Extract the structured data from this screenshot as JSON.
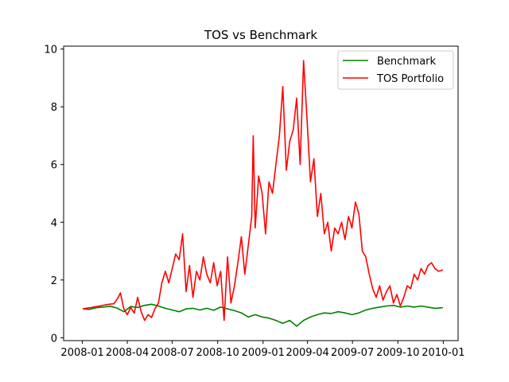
{
  "chart_data": {
    "type": "line",
    "title": "TOS vs Benchmark",
    "xlabel": "",
    "ylabel": "",
    "xlim": [
      "2007-11-24",
      "2010-01-31"
    ],
    "ylim": [
      -0.1,
      10.1
    ],
    "x_ticks": [
      {
        "date": "2008-01-01",
        "label": "2008-01"
      },
      {
        "date": "2008-04-01",
        "label": "2008-04"
      },
      {
        "date": "2008-07-01",
        "label": "2008-07"
      },
      {
        "date": "2008-10-01",
        "label": "2008-10"
      },
      {
        "date": "2009-01-01",
        "label": "2009-01"
      },
      {
        "date": "2009-04-01",
        "label": "2009-04"
      },
      {
        "date": "2009-07-01",
        "label": "2009-07"
      },
      {
        "date": "2009-10-01",
        "label": "2009-10"
      },
      {
        "date": "2010-01-01",
        "label": "2010-01"
      }
    ],
    "y_ticks": [
      0,
      2,
      4,
      6,
      8,
      10
    ],
    "grid": false,
    "legend": "top-right",
    "series": [
      {
        "name": "Benchmark",
        "color": "#008000",
        "points": [
          [
            "2008-01-02",
            1.0
          ],
          [
            "2008-01-15",
            0.98
          ],
          [
            "2008-01-29",
            1.04
          ],
          [
            "2008-02-12",
            1.06
          ],
          [
            "2008-02-26",
            1.09
          ],
          [
            "2008-03-11",
            1.03
          ],
          [
            "2008-03-25",
            0.9
          ],
          [
            "2008-04-08",
            1.08
          ],
          [
            "2008-04-22",
            1.05
          ],
          [
            "2008-05-06",
            1.12
          ],
          [
            "2008-05-20",
            1.16
          ],
          [
            "2008-06-03",
            1.1
          ],
          [
            "2008-06-17",
            1.02
          ],
          [
            "2008-07-01",
            0.96
          ],
          [
            "2008-07-15",
            0.9
          ],
          [
            "2008-07-29",
            1.0
          ],
          [
            "2008-08-12",
            1.02
          ],
          [
            "2008-08-26",
            0.96
          ],
          [
            "2008-09-09",
            1.02
          ],
          [
            "2008-09-23",
            0.95
          ],
          [
            "2008-10-07",
            1.06
          ],
          [
            "2008-10-21",
            1.0
          ],
          [
            "2008-11-04",
            0.94
          ],
          [
            "2008-11-18",
            0.86
          ],
          [
            "2008-12-02",
            0.72
          ],
          [
            "2008-12-16",
            0.8
          ],
          [
            "2008-12-30",
            0.72
          ],
          [
            "2009-01-13",
            0.68
          ],
          [
            "2009-01-27",
            0.6
          ],
          [
            "2009-02-10",
            0.5
          ],
          [
            "2009-02-24",
            0.6
          ],
          [
            "2009-03-10",
            0.4
          ],
          [
            "2009-03-24",
            0.6
          ],
          [
            "2009-04-07",
            0.72
          ],
          [
            "2009-04-21",
            0.8
          ],
          [
            "2009-05-05",
            0.86
          ],
          [
            "2009-05-19",
            0.84
          ],
          [
            "2009-06-02",
            0.9
          ],
          [
            "2009-06-16",
            0.86
          ],
          [
            "2009-06-30",
            0.8
          ],
          [
            "2009-07-14",
            0.86
          ],
          [
            "2009-07-28",
            0.96
          ],
          [
            "2009-08-11",
            1.02
          ],
          [
            "2009-08-25",
            1.06
          ],
          [
            "2009-09-08",
            1.1
          ],
          [
            "2009-09-22",
            1.12
          ],
          [
            "2009-10-06",
            1.06
          ],
          [
            "2009-10-20",
            1.1
          ],
          [
            "2009-11-03",
            1.06
          ],
          [
            "2009-11-17",
            1.1
          ],
          [
            "2009-12-01",
            1.06
          ],
          [
            "2009-12-15",
            1.02
          ],
          [
            "2009-12-31",
            1.04
          ]
        ]
      },
      {
        "name": "TOS Portfolio",
        "color": "#ff0000",
        "points": [
          [
            "2008-01-02",
            1.0
          ],
          [
            "2008-01-20",
            1.05
          ],
          [
            "2008-02-05",
            1.1
          ],
          [
            "2008-02-20",
            1.15
          ],
          [
            "2008-03-05",
            1.18
          ],
          [
            "2008-03-12",
            1.35
          ],
          [
            "2008-03-18",
            1.55
          ],
          [
            "2008-03-25",
            1.0
          ],
          [
            "2008-04-01",
            0.8
          ],
          [
            "2008-04-08",
            1.05
          ],
          [
            "2008-04-15",
            0.85
          ],
          [
            "2008-04-22",
            1.4
          ],
          [
            "2008-04-29",
            0.9
          ],
          [
            "2008-05-06",
            0.6
          ],
          [
            "2008-05-13",
            0.8
          ],
          [
            "2008-05-20",
            0.7
          ],
          [
            "2008-05-27",
            1.0
          ],
          [
            "2008-06-03",
            1.2
          ],
          [
            "2008-06-10",
            1.9
          ],
          [
            "2008-06-17",
            2.3
          ],
          [
            "2008-06-24",
            1.9
          ],
          [
            "2008-07-01",
            2.4
          ],
          [
            "2008-07-08",
            2.9
          ],
          [
            "2008-07-15",
            2.7
          ],
          [
            "2008-07-22",
            3.6
          ],
          [
            "2008-07-29",
            1.6
          ],
          [
            "2008-08-05",
            2.5
          ],
          [
            "2008-08-12",
            1.4
          ],
          [
            "2008-08-19",
            2.3
          ],
          [
            "2008-08-26",
            2.0
          ],
          [
            "2008-09-02",
            2.8
          ],
          [
            "2008-09-09",
            2.2
          ],
          [
            "2008-09-16",
            1.9
          ],
          [
            "2008-09-23",
            2.6
          ],
          [
            "2008-09-30",
            1.8
          ],
          [
            "2008-10-07",
            2.3
          ],
          [
            "2008-10-14",
            0.6
          ],
          [
            "2008-10-21",
            2.8
          ],
          [
            "2008-10-28",
            1.2
          ],
          [
            "2008-11-04",
            1.8
          ],
          [
            "2008-11-11",
            2.6
          ],
          [
            "2008-11-18",
            3.5
          ],
          [
            "2008-11-25",
            2.2
          ],
          [
            "2008-12-02",
            3.2
          ],
          [
            "2008-12-09",
            4.2
          ],
          [
            "2008-12-12",
            7.0
          ],
          [
            "2008-12-16",
            3.8
          ],
          [
            "2008-12-23",
            5.6
          ],
          [
            "2008-12-30",
            5.0
          ],
          [
            "2009-01-06",
            3.6
          ],
          [
            "2009-01-13",
            5.4
          ],
          [
            "2009-01-20",
            5.0
          ],
          [
            "2009-01-27",
            6.0
          ],
          [
            "2009-02-03",
            7.0
          ],
          [
            "2009-02-10",
            8.7
          ],
          [
            "2009-02-17",
            5.8
          ],
          [
            "2009-02-24",
            6.8
          ],
          [
            "2009-03-03",
            7.2
          ],
          [
            "2009-03-10",
            8.3
          ],
          [
            "2009-03-17",
            6.0
          ],
          [
            "2009-03-24",
            9.6
          ],
          [
            "2009-03-31",
            7.6
          ],
          [
            "2009-04-07",
            5.4
          ],
          [
            "2009-04-14",
            6.2
          ],
          [
            "2009-04-21",
            4.2
          ],
          [
            "2009-04-28",
            5.0
          ],
          [
            "2009-05-05",
            3.6
          ],
          [
            "2009-05-12",
            4.0
          ],
          [
            "2009-05-19",
            3.0
          ],
          [
            "2009-05-26",
            3.8
          ],
          [
            "2009-06-02",
            3.6
          ],
          [
            "2009-06-09",
            4.0
          ],
          [
            "2009-06-16",
            3.4
          ],
          [
            "2009-06-23",
            4.2
          ],
          [
            "2009-06-30",
            3.8
          ],
          [
            "2009-07-07",
            4.7
          ],
          [
            "2009-07-14",
            4.3
          ],
          [
            "2009-07-21",
            3.0
          ],
          [
            "2009-07-28",
            2.8
          ],
          [
            "2009-08-04",
            2.2
          ],
          [
            "2009-08-11",
            1.7
          ],
          [
            "2009-08-18",
            1.4
          ],
          [
            "2009-08-25",
            1.8
          ],
          [
            "2009-09-01",
            1.3
          ],
          [
            "2009-09-08",
            1.6
          ],
          [
            "2009-09-15",
            1.8
          ],
          [
            "2009-09-22",
            1.2
          ],
          [
            "2009-09-29",
            1.5
          ],
          [
            "2009-10-06",
            1.1
          ],
          [
            "2009-10-13",
            1.4
          ],
          [
            "2009-10-20",
            1.8
          ],
          [
            "2009-10-27",
            1.7
          ],
          [
            "2009-11-03",
            2.2
          ],
          [
            "2009-11-10",
            2.0
          ],
          [
            "2009-11-17",
            2.4
          ],
          [
            "2009-11-24",
            2.2
          ],
          [
            "2009-12-01",
            2.5
          ],
          [
            "2009-12-08",
            2.6
          ],
          [
            "2009-12-15",
            2.4
          ],
          [
            "2009-12-22",
            2.3
          ],
          [
            "2009-12-31",
            2.35
          ]
        ]
      }
    ]
  }
}
